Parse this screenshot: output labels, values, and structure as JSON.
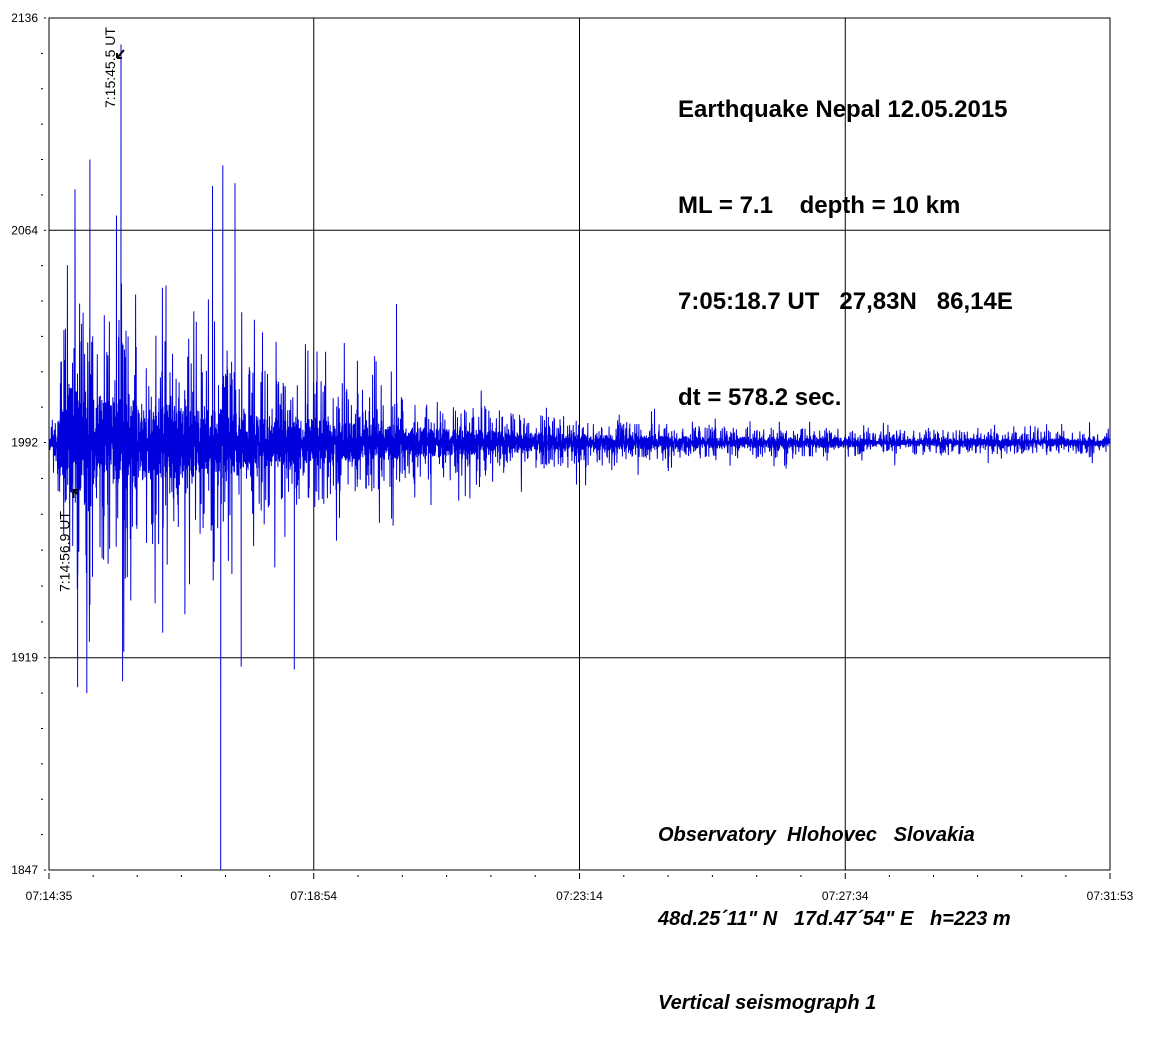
{
  "chart_data": {
    "type": "line",
    "title": "Earthquake Nepal 12.05.2015",
    "info_lines": [
      "Earthquake Nepal 12.05.2015",
      "ML = 7.1    depth = 10 km",
      "7:05:18.7 UT   27,83N   86,14E",
      "dt = 578.2 sec."
    ],
    "station_lines": [
      "Observatory  Hlohovec   Slovakia",
      "48d.25´11\" N   17d.47´54\" E   h=223 m",
      "Vertical seismograph 1"
    ],
    "xlabel": "",
    "ylabel": "",
    "x_range_seconds": [
      0,
      1038
    ],
    "x_ticks": [
      {
        "t": 0,
        "label": "07:14:35"
      },
      {
        "t": 259,
        "label": "07:18:54"
      },
      {
        "t": 519,
        "label": "07:23:14"
      },
      {
        "t": 779,
        "label": "07:27:34"
      },
      {
        "t": 1038,
        "label": "07:31:53"
      }
    ],
    "ylim": [
      1847,
      2136
    ],
    "y_ticks": [
      {
        "v": 2136,
        "label": "2136"
      },
      {
        "v": 2064,
        "label": "2064"
      },
      {
        "v": 1992,
        "label": "1992"
      },
      {
        "v": 1919,
        "label": "1919"
      },
      {
        "v": 1847,
        "label": "1847"
      }
    ],
    "grid": true,
    "baseline": 1992,
    "series_color": "#0000dd",
    "envelope_bins_seconds": 20,
    "envelope_amplitude": [
      1,
      95,
      85,
      80,
      70,
      70,
      65,
      60,
      55,
      55,
      45,
      45,
      40,
      40,
      35,
      33,
      30,
      30,
      25,
      25,
      22,
      22,
      20,
      18,
      17,
      16,
      15,
      14,
      13,
      12,
      12,
      11,
      10,
      10,
      10,
      10,
      9,
      9,
      9,
      9,
      8,
      8,
      8,
      8,
      8,
      8,
      7,
      7,
      7,
      7,
      7,
      7
    ],
    "spikes": [
      {
        "t": 22,
        "v": 1975
      },
      {
        "t": 28,
        "v": 1909
      },
      {
        "t": 37,
        "v": 1907
      },
      {
        "t": 40,
        "v": 2088
      },
      {
        "t": 66,
        "v": 2069
      },
      {
        "t": 70.4,
        "v": 2127
      },
      {
        "t": 72,
        "v": 1911
      },
      {
        "t": 160,
        "v": 2079
      },
      {
        "t": 168,
        "v": 1847
      },
      {
        "t": 170,
        "v": 2086
      },
      {
        "t": 182,
        "v": 2080
      },
      {
        "t": 188,
        "v": 1916
      },
      {
        "t": 240,
        "v": 1915
      },
      {
        "t": 340,
        "v": 2039
      }
    ],
    "annotations": [
      {
        "t": 70.4,
        "label": "7:15:45.5 UT"
      },
      {
        "t": 21.9,
        "label": "7:14:56.9 UT"
      }
    ]
  }
}
